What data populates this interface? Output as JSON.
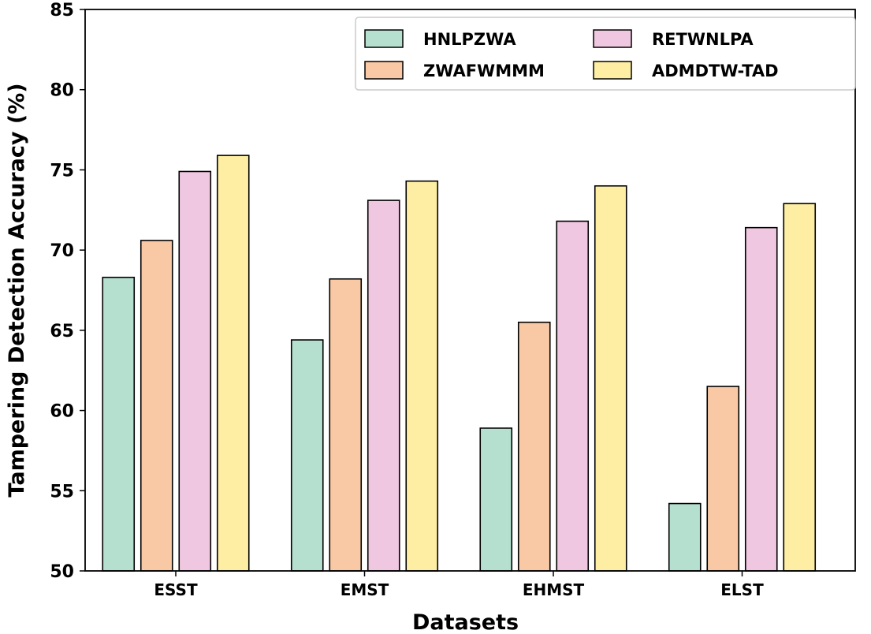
{
  "chart_data": {
    "type": "bar",
    "title": "",
    "xlabel": "Datasets",
    "ylabel": "Tampering Detection Accuracy (%)",
    "ylim": [
      50,
      85
    ],
    "yticks": [
      "50",
      "55",
      "60",
      "65",
      "70",
      "75",
      "80",
      "85"
    ],
    "categories": [
      "ESST",
      "EMST",
      "EHMST",
      "ELST"
    ],
    "legend_position": "top-right",
    "grid": false,
    "series": [
      {
        "name": "HNLPZWA",
        "color": "#b5e0cf",
        "values": [
          68.3,
          64.4,
          58.9,
          54.2
        ]
      },
      {
        "name": "ZWAFWMMM",
        "color": "#f9c9a5",
        "values": [
          70.6,
          68.2,
          65.5,
          61.5
        ]
      },
      {
        "name": "RETWNLPA",
        "color": "#f0c7e0",
        "values": [
          74.9,
          73.1,
          71.8,
          71.4
        ]
      },
      {
        "name": "ADMDTW-TAD",
        "color": "#fdeea3",
        "values": [
          75.9,
          74.3,
          74.0,
          72.9
        ]
      }
    ]
  }
}
